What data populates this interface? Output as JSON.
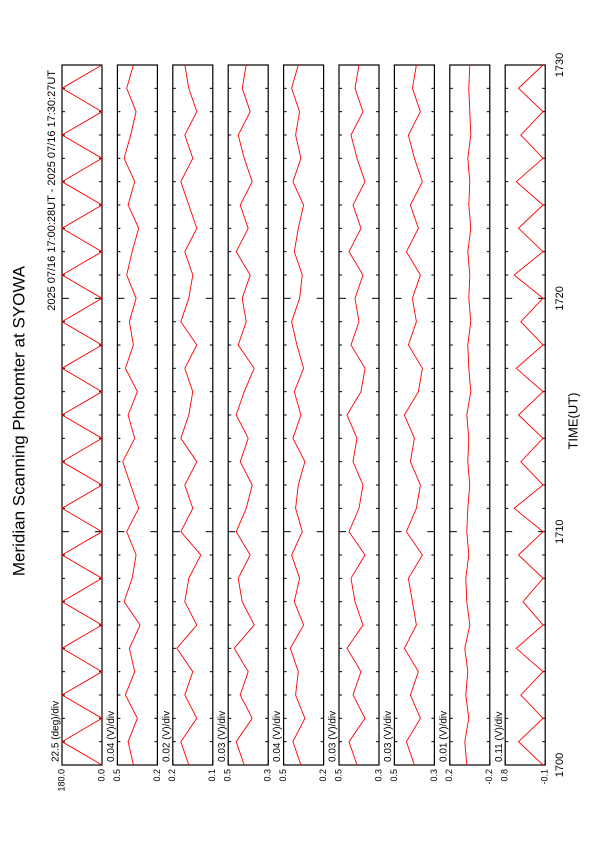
{
  "title": "Meridian Scanning Photomter at SYOWA",
  "subtitle": "2025 07/16 17:00:28UT - 2025 07/16 17:30:27UT",
  "x_label": "TIME(UT)",
  "xlim": [
    1700,
    1730
  ],
  "xticks": [
    1700,
    1710,
    1720,
    1730
  ],
  "x": [
    1700,
    1701,
    1702,
    1703,
    1704,
    1705,
    1706,
    1707,
    1708,
    1709,
    1710,
    1711,
    1712,
    1713,
    1714,
    1715,
    1716,
    1717,
    1718,
    1719,
    1720,
    1721,
    1722,
    1723,
    1724,
    1725,
    1726,
    1727,
    1728,
    1729,
    1730
  ],
  "chart_data": [
    {
      "type": "line",
      "label": "22.5 (deg)/div",
      "color": "#ff0000",
      "ylim": [
        0,
        180
      ],
      "yticks": [
        {
          "value": 0,
          "label": "0.0"
        },
        {
          "value": 180,
          "label": "180.0"
        }
      ],
      "values": [
        0,
        180,
        0,
        180,
        0,
        180,
        0,
        180,
        0,
        180,
        0,
        180,
        0,
        180,
        0,
        180,
        0,
        180,
        0,
        180,
        0,
        180,
        0,
        180,
        0,
        180,
        0,
        180,
        0,
        180,
        0
      ]
    },
    {
      "type": "line",
      "label": "0.04 (V)/div",
      "color": "#ff0000",
      "ylim": [
        0.2,
        0.5
      ],
      "yticks": [
        0.2,
        0.5
      ],
      "values": [
        0.38,
        0.42,
        0.35,
        0.44,
        0.37,
        0.41,
        0.33,
        0.45,
        0.39,
        0.36,
        0.43,
        0.34,
        0.4,
        0.46,
        0.37,
        0.42,
        0.35,
        0.44,
        0.38,
        0.41,
        0.36,
        0.43,
        0.39,
        0.34,
        0.42,
        0.37,
        0.45,
        0.4,
        0.36,
        0.43,
        0.38
      ]
    },
    {
      "type": "line",
      "label": "0.02 (V)/div",
      "color": "#ff0000",
      "ylim": [
        0.1,
        0.2
      ],
      "yticks": [
        0.1,
        0.2
      ],
      "values": [
        0.16,
        0.18,
        0.14,
        0.17,
        0.15,
        0.19,
        0.14,
        0.17,
        0.16,
        0.13,
        0.18,
        0.15,
        0.17,
        0.14,
        0.18,
        0.16,
        0.15,
        0.17,
        0.14,
        0.18,
        0.16,
        0.15,
        0.17,
        0.14,
        0.16,
        0.18,
        0.15,
        0.17,
        0.14,
        0.16,
        0.17
      ]
    },
    {
      "type": "line",
      "label": "0.03 (V)/div",
      "color": "#ff0000",
      "ylim": [
        0.3,
        0.5
      ],
      "yticks": [
        0.3,
        0.5
      ],
      "values": [
        0.42,
        0.46,
        0.38,
        0.44,
        0.4,
        0.47,
        0.37,
        0.43,
        0.45,
        0.39,
        0.46,
        0.41,
        0.38,
        0.44,
        0.4,
        0.46,
        0.42,
        0.37,
        0.45,
        0.41,
        0.43,
        0.39,
        0.46,
        0.4,
        0.44,
        0.38,
        0.42,
        0.45,
        0.39,
        0.43,
        0.41
      ]
    },
    {
      "type": "line",
      "label": "0.04 (V)/div",
      "color": "#ff0000",
      "ylim": [
        0.2,
        0.5
      ],
      "yticks": [
        0.2,
        0.5
      ],
      "values": [
        0.37,
        0.43,
        0.34,
        0.41,
        0.39,
        0.45,
        0.35,
        0.42,
        0.38,
        0.44,
        0.36,
        0.41,
        0.39,
        0.34,
        0.43,
        0.37,
        0.42,
        0.35,
        0.4,
        0.44,
        0.38,
        0.36,
        0.42,
        0.39,
        0.35,
        0.43,
        0.37,
        0.41,
        0.38,
        0.44,
        0.39
      ]
    },
    {
      "type": "line",
      "label": "0.03 (V)/div",
      "color": "#ff0000",
      "ylim": [
        0.3,
        0.5
      ],
      "yticks": [
        0.3,
        0.5
      ],
      "values": [
        0.41,
        0.45,
        0.37,
        0.43,
        0.39,
        0.46,
        0.38,
        0.42,
        0.44,
        0.37,
        0.45,
        0.4,
        0.38,
        0.43,
        0.41,
        0.46,
        0.39,
        0.37,
        0.44,
        0.4,
        0.42,
        0.38,
        0.45,
        0.39,
        0.43,
        0.37,
        0.41,
        0.44,
        0.38,
        0.42,
        0.4
      ]
    },
    {
      "type": "line",
      "label": "0.03 (V)/div",
      "color": "#ff0000",
      "ylim": [
        0.3,
        0.5
      ],
      "yticks": [
        0.3,
        0.5
      ],
      "values": [
        0.4,
        0.44,
        0.37,
        0.42,
        0.38,
        0.45,
        0.39,
        0.41,
        0.43,
        0.36,
        0.44,
        0.39,
        0.37,
        0.42,
        0.4,
        0.45,
        0.38,
        0.36,
        0.43,
        0.39,
        0.41,
        0.37,
        0.44,
        0.38,
        0.42,
        0.36,
        0.4,
        0.43,
        0.37,
        0.41,
        0.39
      ]
    },
    {
      "type": "line",
      "label": "0.01 (V)/div",
      "color": "#ff0000",
      "ylim": [
        -0.2,
        0.2
      ],
      "yticks": [
        -0.2,
        0.2
      ],
      "values": [
        0.03,
        0.05,
        0.01,
        0.04,
        0.02,
        0.05,
        0.0,
        0.03,
        0.04,
        0.01,
        0.03,
        0.02,
        0.0,
        0.02,
        0.01,
        0.03,
        -0.01,
        0.01,
        0.02,
        -0.01,
        0.01,
        0.0,
        0.02,
        -0.01,
        0.01,
        0.0,
        0.02,
        -0.01,
        0.0,
        0.01,
        0.0
      ]
    },
    {
      "type": "line",
      "label": "0.11 (V)/div",
      "color": "#ff0000",
      "ylim": [
        -0.1,
        0.8
      ],
      "yticks": [
        -0.1,
        0.8
      ],
      "values": [
        -0.05,
        0.5,
        -0.05,
        0.45,
        -0.05,
        0.55,
        -0.05,
        0.4,
        -0.05,
        0.5,
        -0.05,
        0.6,
        -0.05,
        0.45,
        -0.05,
        0.5,
        -0.05,
        0.55,
        -0.05,
        0.45,
        -0.05,
        0.6,
        -0.05,
        0.5,
        -0.05,
        0.55,
        -0.05,
        0.45,
        -0.05,
        0.5,
        -0.05
      ]
    }
  ]
}
